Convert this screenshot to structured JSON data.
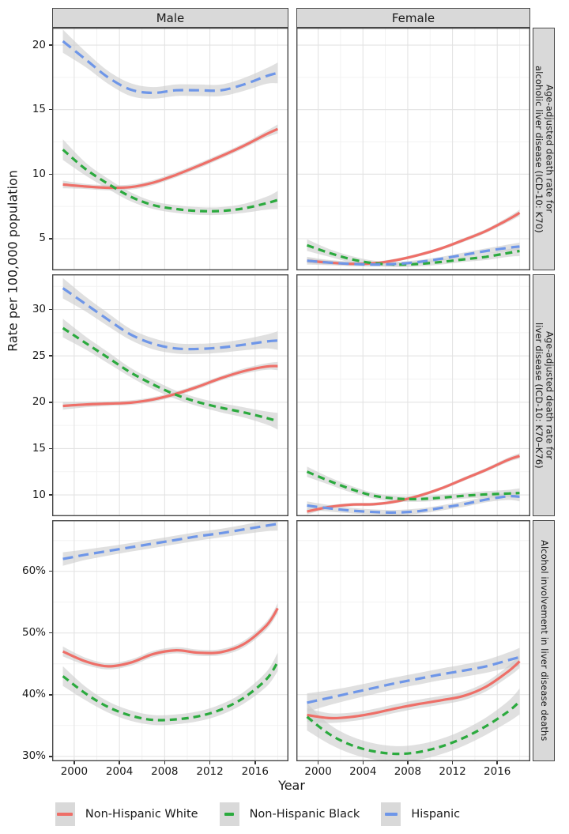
{
  "figure": {
    "y_axis_title": "Rate per 100,000 population",
    "x_axis_title": "Year",
    "column_facets": [
      "Male",
      "Female"
    ],
    "row_facets": [
      "Age-adjusted death rate for\nalcoholic liver disease (ICD-10: K70)",
      "Age-adjusted death rate for\nliver disease (ICD-10: K70–K76)",
      "Alcohol involvement in liver disease deaths"
    ]
  },
  "legend": {
    "key_background": "#d9d9d9",
    "items": [
      {
        "label": "Non-Hispanic White",
        "color": "#ee6f68",
        "dash": "",
        "key_line_width": 20
      },
      {
        "label": "Non-Hispanic Black",
        "color": "#2baa3e",
        "dash": "9 6",
        "key_line_width": 12
      },
      {
        "label": "Hispanic",
        "color": "#6e96e8",
        "dash": "13 7",
        "key_line_width": 16
      }
    ]
  },
  "chart_data": {
    "type": "line",
    "x_label": "Year",
    "y_label": "Rate per 100,000 population",
    "x_domain": [
      1998.05,
      2018.95
    ],
    "x_major_ticks": [
      2000,
      2004,
      2008,
      2012,
      2016
    ],
    "x_minor_ticks": [
      2002,
      2006,
      2010,
      2014,
      2018
    ],
    "band_color": "#cccccc",
    "band_opacity": 0.6,
    "grid_major_color": "#e3e3e3",
    "grid_minor_color": "#f2f2f2",
    "panel_border_color": "#474747",
    "x": [
      1999,
      2001,
      2003,
      2005,
      2007,
      2009,
      2011,
      2013,
      2015,
      2017,
      2018
    ],
    "panels": [
      {
        "facet_col": "Male",
        "facet_row": "Age-adjusted death rate for alcoholic liver disease (ICD-10: K70)",
        "y_domain": [
          2.55,
          21.35
        ],
        "y_major_ticks": [
          5,
          10,
          15,
          20
        ],
        "y_tick_labels": [
          "5",
          "10",
          "15",
          "20"
        ],
        "y_minor_ticks": [
          7.5,
          12.5,
          17.5
        ],
        "series": [
          {
            "name": "Non-Hispanic White",
            "y": [
              9.2,
              9.05,
              8.95,
              9.0,
              9.35,
              9.95,
              10.65,
              11.4,
              12.2,
              13.1,
              13.5
            ],
            "band": [
              0.3,
              0.2,
              0.2,
              0.2,
              0.2,
              0.2,
              0.2,
              0.2,
              0.2,
              0.25,
              0.35
            ]
          },
          {
            "name": "Non-Hispanic Black",
            "y": [
              11.9,
              10.4,
              9.25,
              8.25,
              7.6,
              7.3,
              7.15,
              7.15,
              7.35,
              7.75,
              8.0
            ],
            "band": [
              0.8,
              0.5,
              0.4,
              0.35,
              0.3,
              0.3,
              0.3,
              0.3,
              0.35,
              0.5,
              0.7
            ]
          },
          {
            "name": "Hispanic",
            "y": [
              20.3,
              18.9,
              17.5,
              16.55,
              16.3,
              16.5,
              16.5,
              16.5,
              16.95,
              17.6,
              17.85
            ],
            "band": [
              0.9,
              0.6,
              0.5,
              0.5,
              0.45,
              0.45,
              0.45,
              0.45,
              0.5,
              0.6,
              0.8
            ]
          }
        ]
      },
      {
        "facet_col": "Female",
        "facet_row": "Age-adjusted death rate for alcoholic liver disease (ICD-10: K70)",
        "y_domain": [
          2.55,
          21.35
        ],
        "y_major_ticks": [
          5,
          10,
          15,
          20
        ],
        "y_tick_labels": [
          "5",
          "10",
          "15",
          "20"
        ],
        "y_minor_ticks": [
          7.5,
          12.5,
          17.5
        ],
        "series": [
          {
            "name": "Non-Hispanic White",
            "y": [
              3.3,
              3.15,
              3.05,
              3.1,
              3.35,
              3.75,
              4.25,
              4.9,
              5.6,
              6.5,
              7.0
            ],
            "band": [
              0.2,
              0.15,
              0.12,
              0.12,
              0.12,
              0.12,
              0.12,
              0.15,
              0.15,
              0.2,
              0.25
            ]
          },
          {
            "name": "Non-Hispanic Black",
            "y": [
              4.5,
              3.9,
              3.4,
              3.1,
              3.0,
              3.05,
              3.2,
              3.4,
              3.6,
              3.9,
              4.05
            ],
            "band": [
              0.45,
              0.3,
              0.25,
              0.2,
              0.2,
              0.2,
              0.2,
              0.2,
              0.25,
              0.3,
              0.4
            ]
          },
          {
            "name": "Hispanic",
            "y": [
              3.3,
              3.15,
              3.05,
              3.0,
              3.05,
              3.2,
              3.45,
              3.75,
              4.05,
              4.3,
              4.4
            ],
            "band": [
              0.3,
              0.2,
              0.18,
              0.15,
              0.15,
              0.15,
              0.15,
              0.18,
              0.2,
              0.25,
              0.3
            ]
          }
        ]
      },
      {
        "facet_col": "Male",
        "facet_row": "Age-adjusted death rate for liver disease (ICD-10: K70–K76)",
        "y_domain": [
          7.7,
          33.8
        ],
        "y_major_ticks": [
          10,
          15,
          20,
          25,
          30
        ],
        "y_tick_labels": [
          "10",
          "15",
          "20",
          "25",
          "30"
        ],
        "y_minor_ticks": [
          12.5,
          17.5,
          22.5,
          27.5,
          32.5
        ],
        "series": [
          {
            "name": "Non-Hispanic White",
            "y": [
              19.6,
              19.75,
              19.85,
              19.95,
              20.3,
              20.9,
              21.7,
              22.6,
              23.35,
              23.85,
              23.9
            ],
            "band": [
              0.4,
              0.3,
              0.25,
              0.25,
              0.25,
              0.25,
              0.25,
              0.25,
              0.3,
              0.35,
              0.45
            ]
          },
          {
            "name": "Non-Hispanic Black",
            "y": [
              28.0,
              26.4,
              24.8,
              23.2,
              21.9,
              20.8,
              20.0,
              19.4,
              18.9,
              18.3,
              17.95
            ],
            "band": [
              1.0,
              0.7,
              0.6,
              0.5,
              0.5,
              0.45,
              0.45,
              0.5,
              0.55,
              0.7,
              0.9
            ]
          },
          {
            "name": "Hispanic",
            "y": [
              32.3,
              30.6,
              28.9,
              27.3,
              26.3,
              25.8,
              25.75,
              25.9,
              26.2,
              26.55,
              26.65
            ],
            "band": [
              1.1,
              0.8,
              0.7,
              0.6,
              0.6,
              0.55,
              0.55,
              0.55,
              0.6,
              0.75,
              1.0
            ]
          }
        ]
      },
      {
        "facet_col": "Female",
        "facet_row": "Age-adjusted death rate for liver disease (ICD-10: K70–K76)",
        "y_domain": [
          7.7,
          33.8
        ],
        "y_major_ticks": [
          10,
          15,
          20,
          25,
          30
        ],
        "y_tick_labels": [
          "10",
          "15",
          "20",
          "25",
          "30"
        ],
        "y_minor_ticks": [
          12.5,
          17.5,
          22.5,
          27.5,
          32.5
        ],
        "series": [
          {
            "name": "Non-Hispanic White",
            "y": [
              8.2,
              8.7,
              8.95,
              9.0,
              9.3,
              9.9,
              10.7,
              11.7,
              12.7,
              13.8,
              14.2
            ],
            "band": [
              0.3,
              0.2,
              0.18,
              0.18,
              0.18,
              0.18,
              0.18,
              0.2,
              0.2,
              0.25,
              0.3
            ]
          },
          {
            "name": "Non-Hispanic Black",
            "y": [
              12.5,
              11.5,
              10.6,
              9.9,
              9.6,
              9.55,
              9.7,
              9.9,
              10.05,
              10.15,
              10.2
            ],
            "band": [
              0.55,
              0.4,
              0.35,
              0.3,
              0.3,
              0.3,
              0.3,
              0.3,
              0.35,
              0.4,
              0.5
            ]
          },
          {
            "name": "Hispanic",
            "y": [
              8.85,
              8.55,
              8.3,
              8.15,
              8.1,
              8.25,
              8.6,
              9.0,
              9.5,
              9.85,
              9.8
            ],
            "band": [
              0.45,
              0.35,
              0.3,
              0.28,
              0.28,
              0.28,
              0.28,
              0.3,
              0.3,
              0.4,
              0.5
            ]
          }
        ]
      },
      {
        "facet_col": "Male",
        "facet_row": "Alcohol involvement in liver disease deaths",
        "y_domain": [
          29.2,
          68.3
        ],
        "y_major_ticks": [
          30,
          40,
          50,
          60
        ],
        "y_tick_labels": [
          "30%",
          "40%",
          "50%",
          "60%"
        ],
        "y_minor_ticks": [
          35,
          45,
          55,
          65
        ],
        "series": [
          {
            "name": "Non-Hispanic White",
            "y": [
              47.0,
              45.4,
              44.6,
              45.2,
              46.6,
              47.2,
              46.8,
              46.9,
              48.2,
              51.2,
              54.0
            ],
            "band": [
              0.8,
              0.6,
              0.5,
              0.5,
              0.5,
              0.5,
              0.5,
              0.5,
              0.55,
              0.65,
              0.8
            ]
          },
          {
            "name": "Non-Hispanic Black",
            "y": [
              43.0,
              40.2,
              38.0,
              36.6,
              35.9,
              36.0,
              36.5,
              37.6,
              39.5,
              42.5,
              45.3
            ],
            "band": [
              1.6,
              1.1,
              0.9,
              0.85,
              0.8,
              0.8,
              0.8,
              0.85,
              0.95,
              1.2,
              1.5
            ]
          },
          {
            "name": "Hispanic",
            "y": [
              62.0,
              62.7,
              63.3,
              63.9,
              64.5,
              65.1,
              65.7,
              66.2,
              66.8,
              67.4,
              67.7
            ],
            "band": [
              1.1,
              0.85,
              0.75,
              0.7,
              0.7,
              0.7,
              0.7,
              0.7,
              0.75,
              0.9,
              1.1
            ]
          }
        ]
      },
      {
        "facet_col": "Female",
        "facet_row": "Alcohol involvement in liver disease deaths",
        "y_domain": [
          29.2,
          68.3
        ],
        "y_major_ticks": [
          30,
          40,
          50,
          60
        ],
        "y_tick_labels": [
          "30%",
          "40%",
          "50%",
          "60%"
        ],
        "y_minor_ticks": [
          35,
          45,
          55,
          65
        ],
        "series": [
          {
            "name": "Non-Hispanic White",
            "y": [
              36.7,
              36.2,
              36.4,
              37.0,
              37.8,
              38.5,
              39.1,
              39.8,
              41.3,
              43.8,
              45.4
            ],
            "band": [
              1.1,
              0.8,
              0.7,
              0.7,
              0.7,
              0.7,
              0.7,
              0.7,
              0.75,
              0.9,
              1.1
            ]
          },
          {
            "name": "Non-Hispanic Black",
            "y": [
              36.4,
              33.6,
              31.8,
              30.8,
              30.4,
              30.7,
              31.6,
              33.0,
              34.9,
              37.3,
              38.9
            ],
            "band": [
              2.2,
              1.6,
              1.4,
              1.3,
              1.25,
              1.25,
              1.25,
              1.3,
              1.4,
              1.7,
              2.1
            ]
          },
          {
            "name": "Hispanic",
            "y": [
              38.7,
              39.5,
              40.3,
              41.1,
              41.9,
              42.6,
              43.3,
              43.9,
              44.6,
              45.6,
              46.1
            ],
            "band": [
              1.5,
              1.2,
              1.05,
              1.0,
              0.95,
              0.95,
              0.95,
              1.0,
              1.05,
              1.25,
              1.5
            ]
          }
        ]
      }
    ]
  }
}
